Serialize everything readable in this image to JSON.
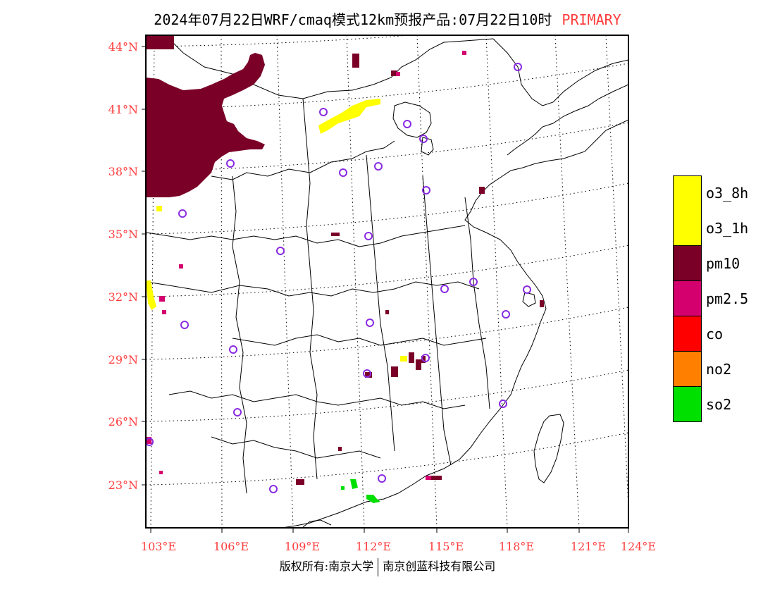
{
  "header": {
    "title": "2024年07月22日WRF/cmaq模式12km预报产品:07月22日10时",
    "tag": "PRIMARY"
  },
  "map": {
    "lat_labels": [
      "44°N",
      "41°N",
      "38°N",
      "35°N",
      "32°N",
      "29°N",
      "26°N",
      "23°N"
    ],
    "lon_labels": [
      "103°E",
      "106°E",
      "109°E",
      "112°E",
      "115°E",
      "118°E",
      "121°E",
      "124°E"
    ],
    "tick_color": "#ff3b3b"
  },
  "legend": {
    "items": [
      {
        "label": "o3_8h",
        "color": "#ffff00"
      },
      {
        "label": "o3_1h",
        "color": "#ffff00"
      },
      {
        "label": "pm10",
        "color": "#7a0028"
      },
      {
        "label": "pm2.5",
        "color": "#d4006e"
      },
      {
        "label": "co",
        "color": "#ff0000"
      },
      {
        "label": "no2",
        "color": "#ff7f00"
      },
      {
        "label": "so2",
        "color": "#00e000"
      }
    ]
  },
  "footer": {
    "left": "版权所有:南京大学",
    "right": "南京创蓝科技有限公司"
  }
}
